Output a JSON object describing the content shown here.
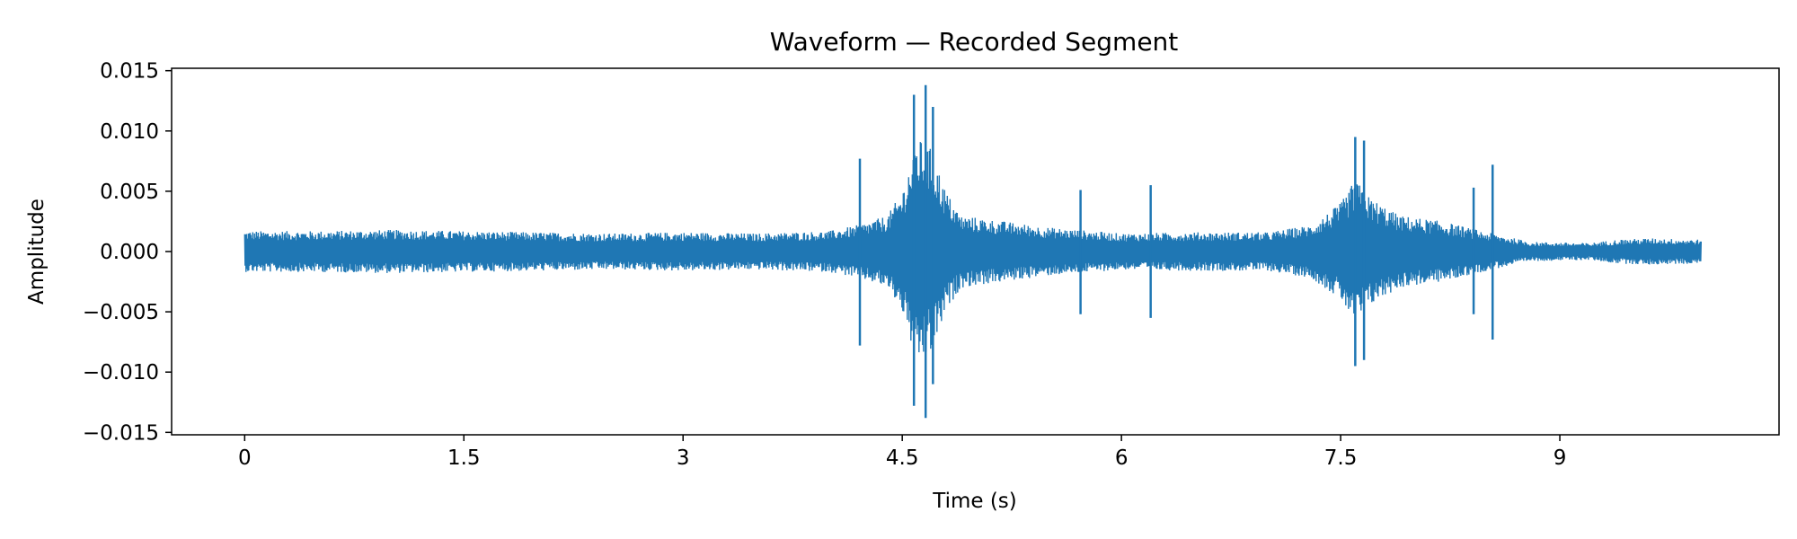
{
  "chart_data": {
    "type": "line",
    "title": "Waveform — Recorded Segment",
    "xlabel": "Time (s)",
    "ylabel": "Amplitude",
    "xlim": [
      -0.5,
      10.5
    ],
    "ylim": [
      -0.0152,
      0.0152
    ],
    "x_ticks": [
      {
        "value": 0,
        "label": "0"
      },
      {
        "value": 1.5,
        "label": "1.5"
      },
      {
        "value": 3,
        "label": "3"
      },
      {
        "value": 4.5,
        "label": "4.5"
      },
      {
        "value": 6,
        "label": "6"
      },
      {
        "value": 7.5,
        "label": "7.5"
      },
      {
        "value": 9,
        "label": "9"
      }
    ],
    "y_ticks": [
      {
        "value": 0.015,
        "label": "0.015"
      },
      {
        "value": 0.01,
        "label": "0.010"
      },
      {
        "value": 0.005,
        "label": "0.005"
      },
      {
        "value": 0.0,
        "label": "0.000"
      },
      {
        "value": -0.005,
        "label": "−0.005"
      },
      {
        "value": -0.01,
        "label": "−0.010"
      },
      {
        "value": -0.015,
        "label": "−0.015"
      }
    ],
    "grid": false,
    "color": "#1f77b4",
    "duration": 9.97,
    "envelope": [
      [
        0.0,
        0.0017
      ],
      [
        0.5,
        0.0017
      ],
      [
        1.0,
        0.0018
      ],
      [
        1.5,
        0.0017
      ],
      [
        2.0,
        0.0016
      ],
      [
        2.5,
        0.0015
      ],
      [
        3.0,
        0.0016
      ],
      [
        3.5,
        0.0015
      ],
      [
        4.0,
        0.0017
      ],
      [
        4.2,
        0.0022
      ],
      [
        4.4,
        0.003
      ],
      [
        4.5,
        0.005
      ],
      [
        4.6,
        0.0095
      ],
      [
        4.7,
        0.0085
      ],
      [
        4.8,
        0.005
      ],
      [
        4.9,
        0.003
      ],
      [
        5.2,
        0.0025
      ],
      [
        5.5,
        0.002
      ],
      [
        6.0,
        0.0015
      ],
      [
        6.5,
        0.0016
      ],
      [
        7.0,
        0.0016
      ],
      [
        7.3,
        0.0022
      ],
      [
        7.5,
        0.004
      ],
      [
        7.6,
        0.006
      ],
      [
        7.7,
        0.0045
      ],
      [
        7.9,
        0.003
      ],
      [
        8.2,
        0.0025
      ],
      [
        8.5,
        0.0016
      ],
      [
        8.8,
        0.0008
      ],
      [
        9.2,
        0.0007
      ],
      [
        9.4,
        0.001
      ],
      [
        9.6,
        0.0011
      ],
      [
        9.97,
        0.001
      ]
    ],
    "spikes": [
      {
        "x": 4.21,
        "y": [
          -0.0078,
          0.0077
        ]
      },
      {
        "x": 4.58,
        "y": [
          -0.0128,
          0.013
        ]
      },
      {
        "x": 4.66,
        "y": [
          -0.0138,
          0.0138
        ]
      },
      {
        "x": 4.71,
        "y": [
          -0.011,
          0.012
        ]
      },
      {
        "x": 5.72,
        "y": [
          -0.0052,
          0.0051
        ]
      },
      {
        "x": 6.2,
        "y": [
          -0.0055,
          0.0055
        ]
      },
      {
        "x": 7.6,
        "y": [
          -0.0095,
          0.0095
        ]
      },
      {
        "x": 7.66,
        "y": [
          -0.009,
          0.0092
        ]
      },
      {
        "x": 8.41,
        "y": [
          -0.0052,
          0.0053
        ]
      },
      {
        "x": 8.54,
        "y": [
          -0.0073,
          0.0072
        ]
      }
    ]
  }
}
